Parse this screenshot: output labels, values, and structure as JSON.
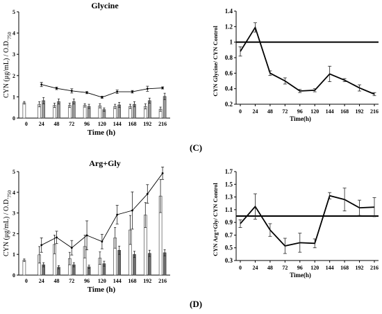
{
  "panels": {
    "C": "(C)",
    "D": "(D)"
  },
  "chart_data": [
    {
      "id": "glycine-bars",
      "type": "bar",
      "title": "Glycine",
      "ylabel": "CYN (μg/mL) / O.D.",
      "ylabel_sub": "750",
      "xlabel": "Time (h)",
      "categories": [
        "0",
        "24",
        "48",
        "72",
        "96",
        "120",
        "144",
        "168",
        "192",
        "216"
      ],
      "ylim": [
        0,
        5
      ],
      "yticks": [
        "0",
        "1",
        "2",
        "3",
        "4",
        "5"
      ],
      "series": [
        {
          "fill": "#ffffff",
          "values": [
            0.72,
            0.65,
            0.6,
            0.6,
            0.6,
            0.58,
            0.55,
            0.55,
            0.55,
            0.42
          ],
          "errors": [
            0.06,
            0.12,
            0.1,
            0.1,
            0.08,
            0.1,
            0.1,
            0.1,
            0.12,
            0.1
          ]
        },
        {
          "fill": "#9a9a9a",
          "values": [
            null,
            0.82,
            0.78,
            0.78,
            0.55,
            0.4,
            0.62,
            0.65,
            0.82,
            1.02
          ],
          "errors": [
            null,
            0.15,
            0.12,
            0.12,
            0.1,
            0.08,
            0.12,
            0.12,
            0.12,
            0.15
          ]
        }
      ],
      "line": {
        "values": [
          null,
          1.58,
          1.4,
          1.28,
          1.2,
          0.98,
          1.24,
          1.24,
          1.38,
          1.42
        ],
        "errors": [
          null,
          0.1,
          0.06,
          0.1,
          0.05,
          0.05,
          0.08,
          0.06,
          0.12,
          0.05
        ]
      }
    },
    {
      "id": "glycine-ratio",
      "type": "line",
      "title": "",
      "ylabel": "CYN Glycine/ CYN Control",
      "xlabel": "Time(h)",
      "x": [
        "0",
        "24",
        "48",
        "72",
        "96",
        "120",
        "144",
        "168",
        "192",
        "216"
      ],
      "ylim": [
        0.2,
        1.4
      ],
      "yticks": [
        "0.2",
        "0.4",
        "0.6",
        "0.8",
        "1",
        "1.2",
        "1.4"
      ],
      "reference": 1,
      "values": [
        0.88,
        1.19,
        0.6,
        0.5,
        0.37,
        0.38,
        0.59,
        0.51,
        0.41,
        0.33
      ],
      "errors": [
        0.06,
        0.06,
        0.03,
        0.04,
        0.02,
        0.02,
        0.1,
        0.02,
        0.04,
        0.02
      ]
    },
    {
      "id": "arggly-bars",
      "type": "bar",
      "title": "Arg+Gly",
      "ylabel": "CYN (μg/mL) / O.D.",
      "ylabel_sub": "750",
      "xlabel": "Time (h)",
      "categories": [
        "0",
        "24",
        "48",
        "72",
        "96",
        "120",
        "144",
        "168",
        "192",
        "216"
      ],
      "ylim": [
        0,
        5
      ],
      "yticks": [
        "0",
        "1",
        "2",
        "3",
        "4",
        "5"
      ],
      "series": [
        {
          "fill": "#ffffff",
          "values": [
            0.72,
            0.98,
            1.48,
            0.8,
            1.38,
            0.82,
            1.8,
            2.18,
            2.9,
            3.82
          ],
          "errors": [
            0.06,
            0.4,
            0.45,
            0.3,
            0.55,
            0.3,
            0.5,
            0.7,
            0.6,
            0.8
          ]
        },
        {
          "fill": "#6e6e6e",
          "values": [
            null,
            0.5,
            0.38,
            0.5,
            0.4,
            0.55,
            1.2,
            1.0,
            1.05,
            1.08
          ],
          "errors": [
            null,
            0.1,
            0.08,
            0.1,
            0.08,
            0.12,
            0.2,
            0.15,
            0.15,
            0.15
          ]
        }
      ],
      "line": {
        "values": [
          null,
          1.45,
          1.82,
          1.32,
          1.92,
          1.62,
          2.92,
          3.12,
          3.92,
          4.92
        ],
        "errors": [
          null,
          0.35,
          0.3,
          0.35,
          0.7,
          0.35,
          0.45,
          0.9,
          0.45,
          0.3
        ]
      }
    },
    {
      "id": "arggly-ratio",
      "type": "line",
      "title": "",
      "ylabel": "CYN Arg+Gly/ CYN Control",
      "xlabel": "Time(h)",
      "x": [
        "0",
        "24",
        "48",
        "72",
        "96",
        "120",
        "144",
        "168",
        "192",
        "216"
      ],
      "ylim": [
        0.3,
        1.7
      ],
      "yticks": [
        "0.3",
        "0.5",
        "0.7",
        "0.9",
        "1.1",
        "1.3",
        "1.5",
        "1.7"
      ],
      "reference": 1,
      "values": [
        0.88,
        1.15,
        0.78,
        0.53,
        0.58,
        0.57,
        1.32,
        1.26,
        1.13,
        1.14
      ],
      "errors": [
        0.06,
        0.2,
        0.1,
        0.12,
        0.15,
        0.07,
        0.05,
        0.18,
        0.12,
        0.15
      ]
    }
  ]
}
